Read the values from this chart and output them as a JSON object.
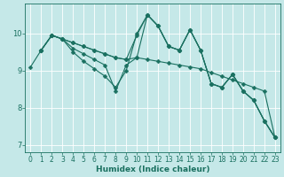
{
  "xlabel": "Humidex (Indice chaleur)",
  "bg_color": "#c5e8e8",
  "grid_color": "#ffffff",
  "line_color": "#1a7060",
  "lines": [
    {
      "x": [
        0,
        1,
        2,
        3,
        4,
        5,
        6,
        7,
        8,
        9,
        10,
        11,
        12,
        13,
        14,
        15,
        16,
        17,
        18,
        19,
        20,
        21,
        22,
        23
      ],
      "y": [
        9.1,
        9.55,
        9.95,
        9.85,
        9.75,
        9.65,
        9.55,
        9.45,
        9.35,
        9.3,
        9.35,
        9.3,
        9.25,
        9.2,
        9.15,
        9.1,
        9.05,
        8.95,
        8.85,
        8.75,
        8.65,
        8.55,
        8.45,
        7.2
      ]
    },
    {
      "x": [
        1,
        2,
        3,
        4,
        5,
        6,
        7,
        8,
        9,
        10,
        11,
        12,
        13,
        14,
        15,
        16,
        17,
        18,
        19,
        20,
        21,
        22,
        23
      ],
      "y": [
        9.55,
        9.95,
        9.85,
        9.75,
        9.65,
        9.55,
        9.45,
        9.35,
        9.3,
        9.95,
        10.5,
        10.2,
        9.65,
        9.55,
        10.1,
        9.55,
        8.65,
        8.55,
        8.9,
        8.45,
        8.2,
        7.65,
        7.2
      ]
    },
    {
      "x": [
        1,
        2,
        3,
        4,
        5,
        6,
        7,
        8,
        9,
        10,
        11,
        12,
        13,
        14,
        15,
        16,
        17,
        18,
        19,
        20,
        21,
        22,
        23
      ],
      "y": [
        9.55,
        9.95,
        9.85,
        9.5,
        9.25,
        9.05,
        8.85,
        8.55,
        9.0,
        10.0,
        10.5,
        10.2,
        9.65,
        9.55,
        10.1,
        9.55,
        8.65,
        8.55,
        8.9,
        8.45,
        8.2,
        7.65,
        7.2
      ]
    },
    {
      "x": [
        1,
        2,
        3,
        4,
        5,
        6,
        7,
        8,
        9,
        10,
        11,
        12,
        13,
        14,
        15,
        16,
        17,
        18,
        19,
        20,
        21,
        22,
        23
      ],
      "y": [
        9.55,
        9.95,
        9.85,
        9.6,
        9.45,
        9.3,
        9.15,
        8.45,
        9.15,
        9.35,
        10.5,
        10.2,
        9.65,
        9.55,
        10.1,
        9.55,
        8.65,
        8.55,
        8.9,
        8.45,
        8.2,
        7.65,
        7.2
      ]
    }
  ],
  "xlim": [
    -0.5,
    23.5
  ],
  "ylim": [
    6.8,
    10.8
  ],
  "yticks": [
    7,
    8,
    9,
    10
  ],
  "xticks": [
    0,
    1,
    2,
    3,
    4,
    5,
    6,
    7,
    8,
    9,
    10,
    11,
    12,
    13,
    14,
    15,
    16,
    17,
    18,
    19,
    20,
    21,
    22,
    23
  ],
  "xlabel_fontsize": 6.5,
  "tick_fontsize": 5.5,
  "linewidth": 0.8,
  "markersize": 2.5
}
